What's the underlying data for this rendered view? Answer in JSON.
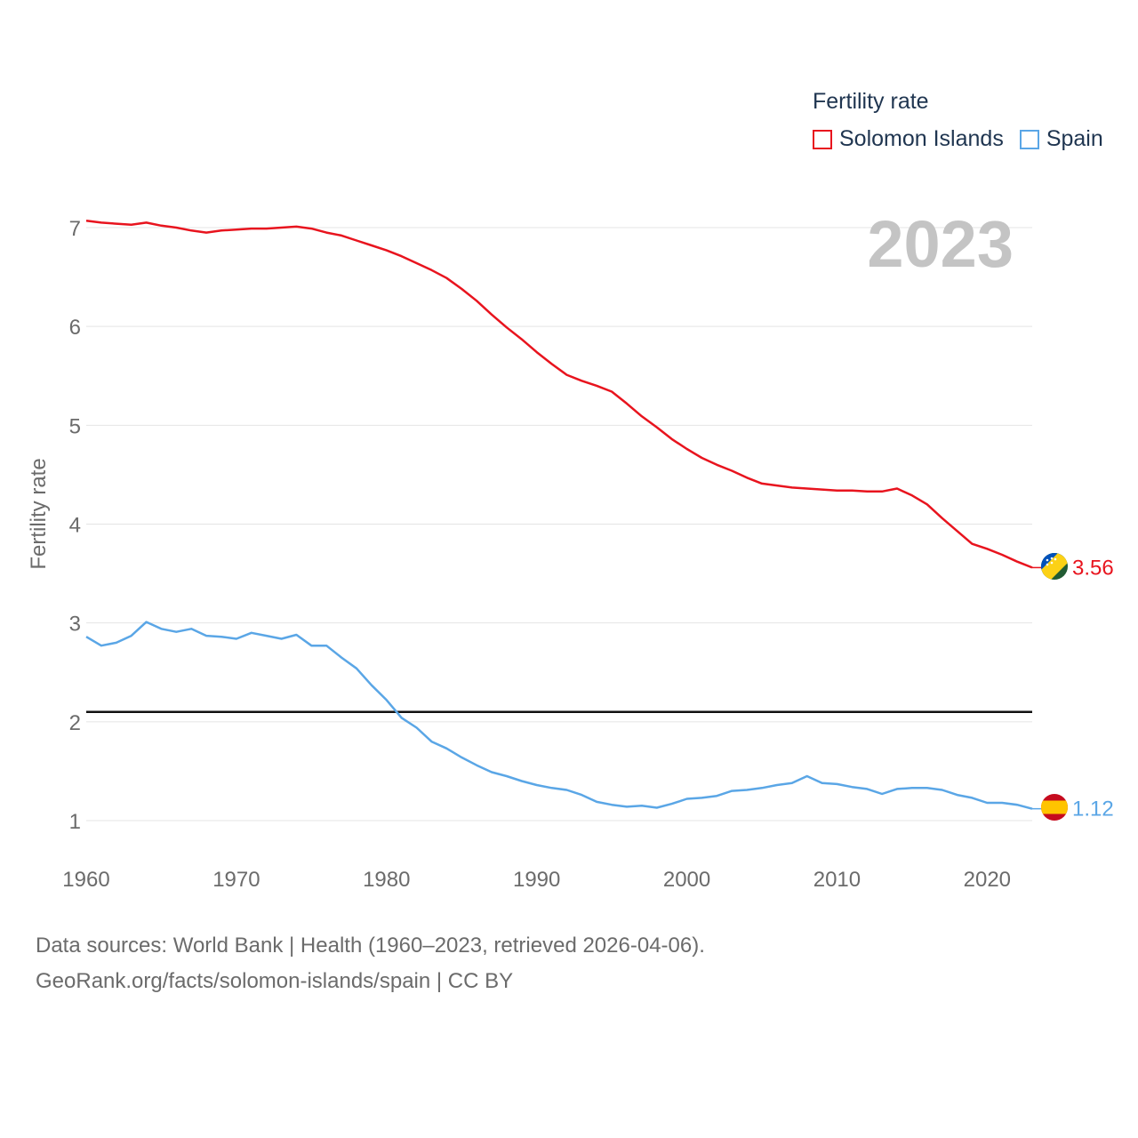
{
  "legend": {
    "title": "Fertility rate",
    "items": [
      {
        "label": "Solomon Islands",
        "color": "#e8141e"
      },
      {
        "label": "Spain",
        "color": "#5aa6e6"
      }
    ]
  },
  "year_label": "2023",
  "footer": {
    "line1": "Data sources: World Bank | Health (1960–2023, retrieved 2026-04-06).",
    "line2": "GeoRank.org/facts/solomon-islands/spain | CC BY"
  },
  "chart_data": {
    "type": "line",
    "title": "",
    "xlabel": "",
    "ylabel": "Fertility rate",
    "xlim": [
      1960,
      2023
    ],
    "ylim": [
      0.7,
      7.3
    ],
    "x_ticks": [
      1960,
      1970,
      1980,
      1990,
      2000,
      2010,
      2020
    ],
    "y_ticks": [
      1,
      2,
      3,
      4,
      5,
      6,
      7
    ],
    "reference_line": 2.1,
    "x": [
      1960,
      1961,
      1962,
      1963,
      1964,
      1965,
      1966,
      1967,
      1968,
      1969,
      1970,
      1971,
      1972,
      1973,
      1974,
      1975,
      1976,
      1977,
      1978,
      1979,
      1980,
      1981,
      1982,
      1983,
      1984,
      1985,
      1986,
      1987,
      1988,
      1989,
      1990,
      1991,
      1992,
      1993,
      1994,
      1995,
      1996,
      1997,
      1998,
      1999,
      2000,
      2001,
      2002,
      2003,
      2004,
      2005,
      2006,
      2007,
      2008,
      2009,
      2010,
      2011,
      2012,
      2013,
      2014,
      2015,
      2016,
      2017,
      2018,
      2019,
      2020,
      2021,
      2022,
      2023
    ],
    "series": [
      {
        "name": "Solomon Islands",
        "color": "#e8141e",
        "end_label": "3.56",
        "flag": "solomon-islands-flag",
        "values": [
          7.07,
          7.05,
          7.04,
          7.03,
          7.05,
          7.02,
          7.0,
          6.97,
          6.95,
          6.97,
          6.98,
          6.99,
          6.99,
          7.0,
          7.01,
          6.99,
          6.95,
          6.92,
          6.87,
          6.82,
          6.77,
          6.71,
          6.64,
          6.57,
          6.49,
          6.38,
          6.26,
          6.12,
          5.99,
          5.87,
          5.74,
          5.62,
          5.51,
          5.45,
          5.4,
          5.34,
          5.22,
          5.09,
          4.98,
          4.86,
          4.76,
          4.67,
          4.6,
          4.54,
          4.47,
          4.41,
          4.39,
          4.37,
          4.36,
          4.35,
          4.34,
          4.34,
          4.33,
          4.33,
          4.36,
          4.29,
          4.2,
          4.06,
          3.93,
          3.8,
          3.75,
          3.69,
          3.62,
          3.56
        ]
      },
      {
        "name": "Spain",
        "color": "#5aa6e6",
        "end_label": "1.12",
        "flag": "spain-flag",
        "values": [
          2.86,
          2.77,
          2.8,
          2.87,
          3.01,
          2.94,
          2.91,
          2.94,
          2.87,
          2.86,
          2.84,
          2.9,
          2.87,
          2.84,
          2.88,
          2.77,
          2.77,
          2.65,
          2.54,
          2.37,
          2.22,
          2.04,
          1.94,
          1.8,
          1.73,
          1.64,
          1.56,
          1.49,
          1.45,
          1.4,
          1.36,
          1.33,
          1.31,
          1.26,
          1.19,
          1.16,
          1.14,
          1.15,
          1.13,
          1.17,
          1.22,
          1.23,
          1.25,
          1.3,
          1.31,
          1.33,
          1.36,
          1.38,
          1.45,
          1.38,
          1.37,
          1.34,
          1.32,
          1.27,
          1.32,
          1.33,
          1.33,
          1.31,
          1.26,
          1.23,
          1.18,
          1.18,
          1.16,
          1.12
        ]
      }
    ]
  }
}
